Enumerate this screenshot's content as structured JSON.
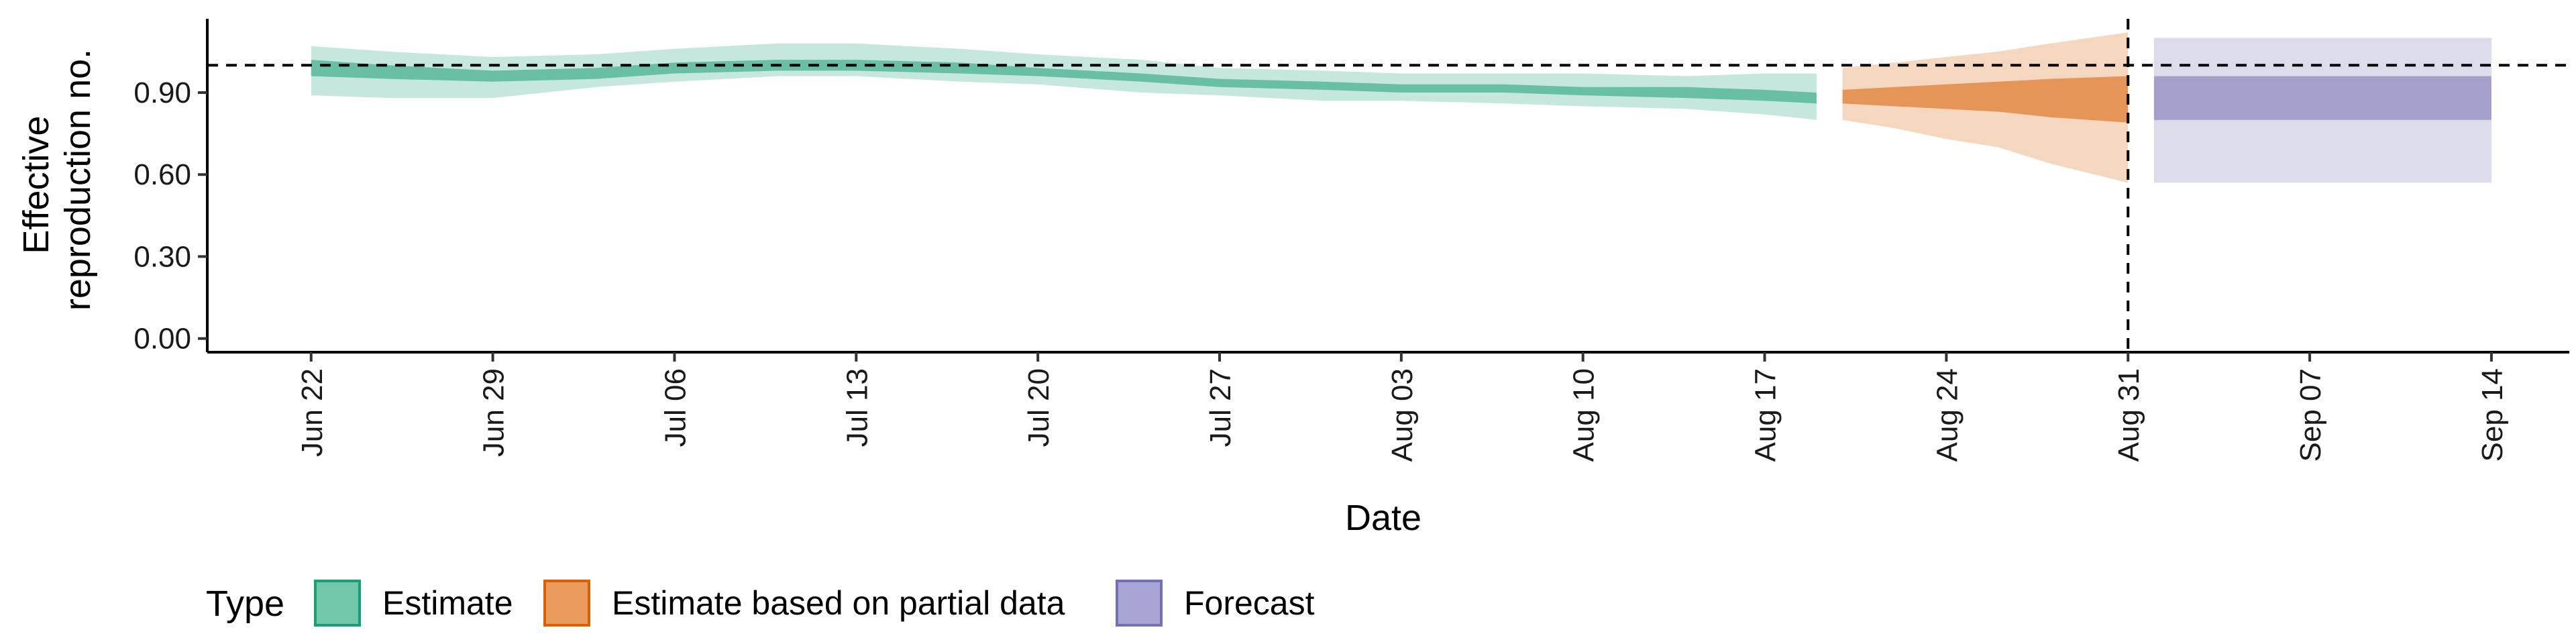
{
  "chart_data": {
    "type": "area",
    "xlabel": "Date",
    "ylabel_lines": [
      "Effective",
      "reproduction no."
    ],
    "x_ticks": [
      "Jun 22",
      "Jun 29",
      "Jul 06",
      "Jul 13",
      "Jul 20",
      "Jul 27",
      "Aug 03",
      "Aug 10",
      "Aug 17",
      "Aug 24",
      "Aug 31",
      "Sep 07",
      "Sep 14"
    ],
    "x_range": [
      "2020-06-18",
      "2020-09-17"
    ],
    "y_ticks": [
      "0.00",
      "0.30",
      "0.60",
      "0.90"
    ],
    "y_tick_values": [
      0,
      0.3,
      0.6,
      0.9
    ],
    "ylim": [
      -0.05,
      1.17
    ],
    "reference_line_y": 1.0,
    "reference_line_x": "2020-08-31",
    "legend": {
      "title": "Type",
      "position": "bottom",
      "items": [
        {
          "label": "Estimate",
          "fill": "#72c6a9",
          "stroke": "#1b9e77"
        },
        {
          "label": "Estimate based on partial data",
          "fill": "#ec9b5f",
          "stroke": "#d95f02"
        },
        {
          "label": "Forecast",
          "fill": "#a8a4d4",
          "stroke": "#7570b3"
        }
      ]
    },
    "series": [
      {
        "name": "Estimate",
        "color": "#1b9e77",
        "x": [
          "2020-06-22",
          "2020-06-25",
          "2020-06-29",
          "2020-07-03",
          "2020-07-06",
          "2020-07-10",
          "2020-07-13",
          "2020-07-17",
          "2020-07-20",
          "2020-07-24",
          "2020-07-27",
          "2020-07-31",
          "2020-08-03",
          "2020-08-07",
          "2020-08-10",
          "2020-08-14",
          "2020-08-17",
          "2020-08-19"
        ],
        "median": [
          0.99,
          0.97,
          0.96,
          0.97,
          0.99,
          1.0,
          1.0,
          0.99,
          0.97,
          0.96,
          0.94,
          0.93,
          0.92,
          0.91,
          0.91,
          0.9,
          0.89,
          0.88
        ],
        "lower_50": [
          0.96,
          0.95,
          0.94,
          0.95,
          0.97,
          0.98,
          0.98,
          0.97,
          0.96,
          0.94,
          0.92,
          0.91,
          0.9,
          0.9,
          0.89,
          0.88,
          0.87,
          0.86
        ],
        "upper_50": [
          1.02,
          1.0,
          0.98,
          0.99,
          1.01,
          1.02,
          1.02,
          1.01,
          0.99,
          0.97,
          0.95,
          0.94,
          0.93,
          0.93,
          0.92,
          0.92,
          0.91,
          0.9
        ],
        "lower_90": [
          0.89,
          0.88,
          0.88,
          0.92,
          0.94,
          0.96,
          0.96,
          0.94,
          0.93,
          0.9,
          0.89,
          0.87,
          0.87,
          0.86,
          0.85,
          0.84,
          0.82,
          0.8
        ],
        "upper_90": [
          1.07,
          1.05,
          1.03,
          1.04,
          1.06,
          1.08,
          1.08,
          1.06,
          1.04,
          1.02,
          0.99,
          0.98,
          0.97,
          0.97,
          0.97,
          0.96,
          0.97,
          0.97
        ]
      },
      {
        "name": "Estimate based on partial data",
        "color": "#d95f02",
        "x": [
          "2020-08-20",
          "2020-08-22",
          "2020-08-24",
          "2020-08-26",
          "2020-08-28",
          "2020-08-31"
        ],
        "median": [
          0.89,
          0.89,
          0.89,
          0.88,
          0.88,
          0.88
        ],
        "lower_50": [
          0.86,
          0.85,
          0.84,
          0.83,
          0.81,
          0.79
        ],
        "upper_50": [
          0.91,
          0.92,
          0.93,
          0.94,
          0.95,
          0.96
        ],
        "lower_90": [
          0.8,
          0.77,
          0.73,
          0.7,
          0.64,
          0.57
        ],
        "upper_90": [
          0.99,
          1.01,
          1.03,
          1.05,
          1.08,
          1.12
        ]
      },
      {
        "name": "Forecast",
        "color": "#7570b3",
        "x": [
          "2020-09-01",
          "2020-09-14"
        ],
        "median": [
          0.88,
          0.88
        ],
        "lower_50": [
          0.8,
          0.8
        ],
        "upper_50": [
          0.96,
          0.96
        ],
        "lower_90": [
          0.57,
          0.57
        ],
        "upper_90": [
          1.1,
          1.1
        ]
      }
    ]
  }
}
